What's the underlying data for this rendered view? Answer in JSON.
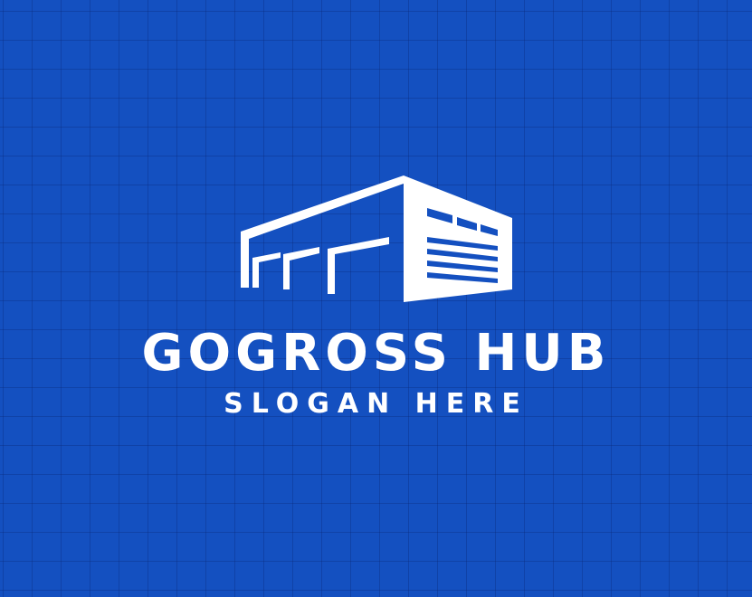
{
  "colors": {
    "background": "#1450c0",
    "grid_lines": "#0a2878",
    "foreground": "#ffffff"
  },
  "logo": {
    "icon": "warehouse-icon",
    "brand_name": "GOGROSS HUB",
    "slogan": "SLOGAN HERE"
  }
}
